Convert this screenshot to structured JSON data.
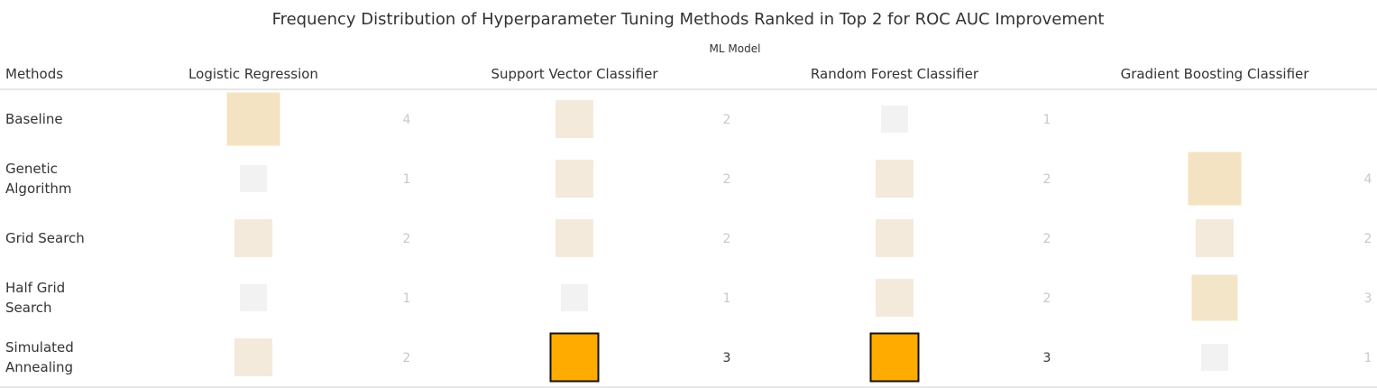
{
  "chart_data": {
    "type": "heatmap",
    "title": "Frequency Distribution of Hyperparameter Tuning Methods Ranked in Top 2 for ROC AUC Improvement",
    "column_group_label": "ML Model",
    "row_header": "Methods",
    "columns": [
      "Logistic Regression",
      "Support Vector Classifier",
      "Random Forest Classifier",
      "Gradient Boosting Classifier"
    ],
    "rows": [
      {
        "label": [
          "Baseline"
        ],
        "values": [
          4,
          2,
          1,
          null
        ]
      },
      {
        "label": [
          "Genetic",
          "Algorithm"
        ],
        "values": [
          1,
          2,
          2,
          4
        ]
      },
      {
        "label": [
          "Grid Search"
        ],
        "values": [
          2,
          2,
          2,
          2
        ]
      },
      {
        "label": [
          "Half Grid",
          "Search"
        ],
        "values": [
          1,
          1,
          2,
          3
        ]
      },
      {
        "label": [
          "Simulated",
          "Annealing"
        ],
        "values": [
          2,
          3,
          3,
          1
        ]
      }
    ],
    "highlighted_cells": [
      [
        4,
        1
      ],
      [
        4,
        2
      ]
    ],
    "colors": {
      "v1": "#f2f2f2",
      "v2": "#f3eadc",
      "v3": "#f3e5c8",
      "v4": "#f4e3c2",
      "highlight": "#ffab00",
      "highlight_border": "#111111",
      "faded_text": "#c8c8c8",
      "highlight_text": "#333333"
    }
  }
}
